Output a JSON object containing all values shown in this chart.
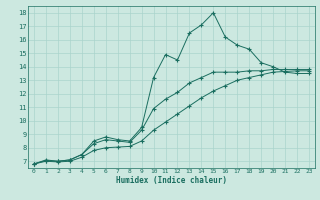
{
  "xlabel": "Humidex (Indice chaleur)",
  "bg_color": "#cce8e0",
  "line_color": "#1a6e60",
  "grid_color": "#aad4cc",
  "xlim": [
    -0.5,
    23.5
  ],
  "ylim": [
    6.5,
    18.5
  ],
  "yticks": [
    7,
    8,
    9,
    10,
    11,
    12,
    13,
    14,
    15,
    16,
    17,
    18
  ],
  "xticks": [
    0,
    1,
    2,
    3,
    4,
    5,
    6,
    7,
    8,
    9,
    10,
    11,
    12,
    13,
    14,
    15,
    16,
    17,
    18,
    19,
    20,
    21,
    22,
    23
  ],
  "series": [
    {
      "x": [
        0,
        1,
        2,
        3,
        4,
        5,
        6,
        7,
        8,
        9,
        10,
        11,
        12,
        13,
        14,
        15,
        16,
        17,
        18,
        19,
        20,
        21,
        22,
        23
      ],
      "y": [
        6.8,
        7.1,
        7.0,
        7.1,
        7.5,
        8.5,
        8.8,
        8.6,
        8.5,
        9.5,
        13.2,
        14.9,
        14.5,
        16.5,
        17.1,
        18.0,
        16.2,
        15.6,
        15.3,
        14.3,
        14.0,
        13.6,
        13.5,
        13.5
      ]
    },
    {
      "x": [
        0,
        1,
        2,
        3,
        4,
        5,
        6,
        7,
        8,
        9,
        10,
        11,
        12,
        13,
        14,
        15,
        16,
        17,
        18,
        19,
        20,
        21,
        22,
        23
      ],
      "y": [
        6.8,
        7.05,
        7.0,
        7.1,
        7.5,
        8.3,
        8.6,
        8.5,
        8.4,
        9.3,
        10.9,
        11.6,
        12.1,
        12.8,
        13.2,
        13.6,
        13.6,
        13.6,
        13.7,
        13.7,
        13.8,
        13.8,
        13.8,
        13.8
      ]
    },
    {
      "x": [
        0,
        1,
        2,
        3,
        4,
        5,
        6,
        7,
        8,
        9,
        10,
        11,
        12,
        13,
        14,
        15,
        16,
        17,
        18,
        19,
        20,
        21,
        22,
        23
      ],
      "y": [
        6.8,
        7.0,
        6.95,
        7.0,
        7.3,
        7.8,
        8.0,
        8.05,
        8.1,
        8.5,
        9.3,
        9.9,
        10.5,
        11.1,
        11.7,
        12.2,
        12.6,
        13.0,
        13.2,
        13.4,
        13.6,
        13.65,
        13.7,
        13.7
      ]
    }
  ]
}
